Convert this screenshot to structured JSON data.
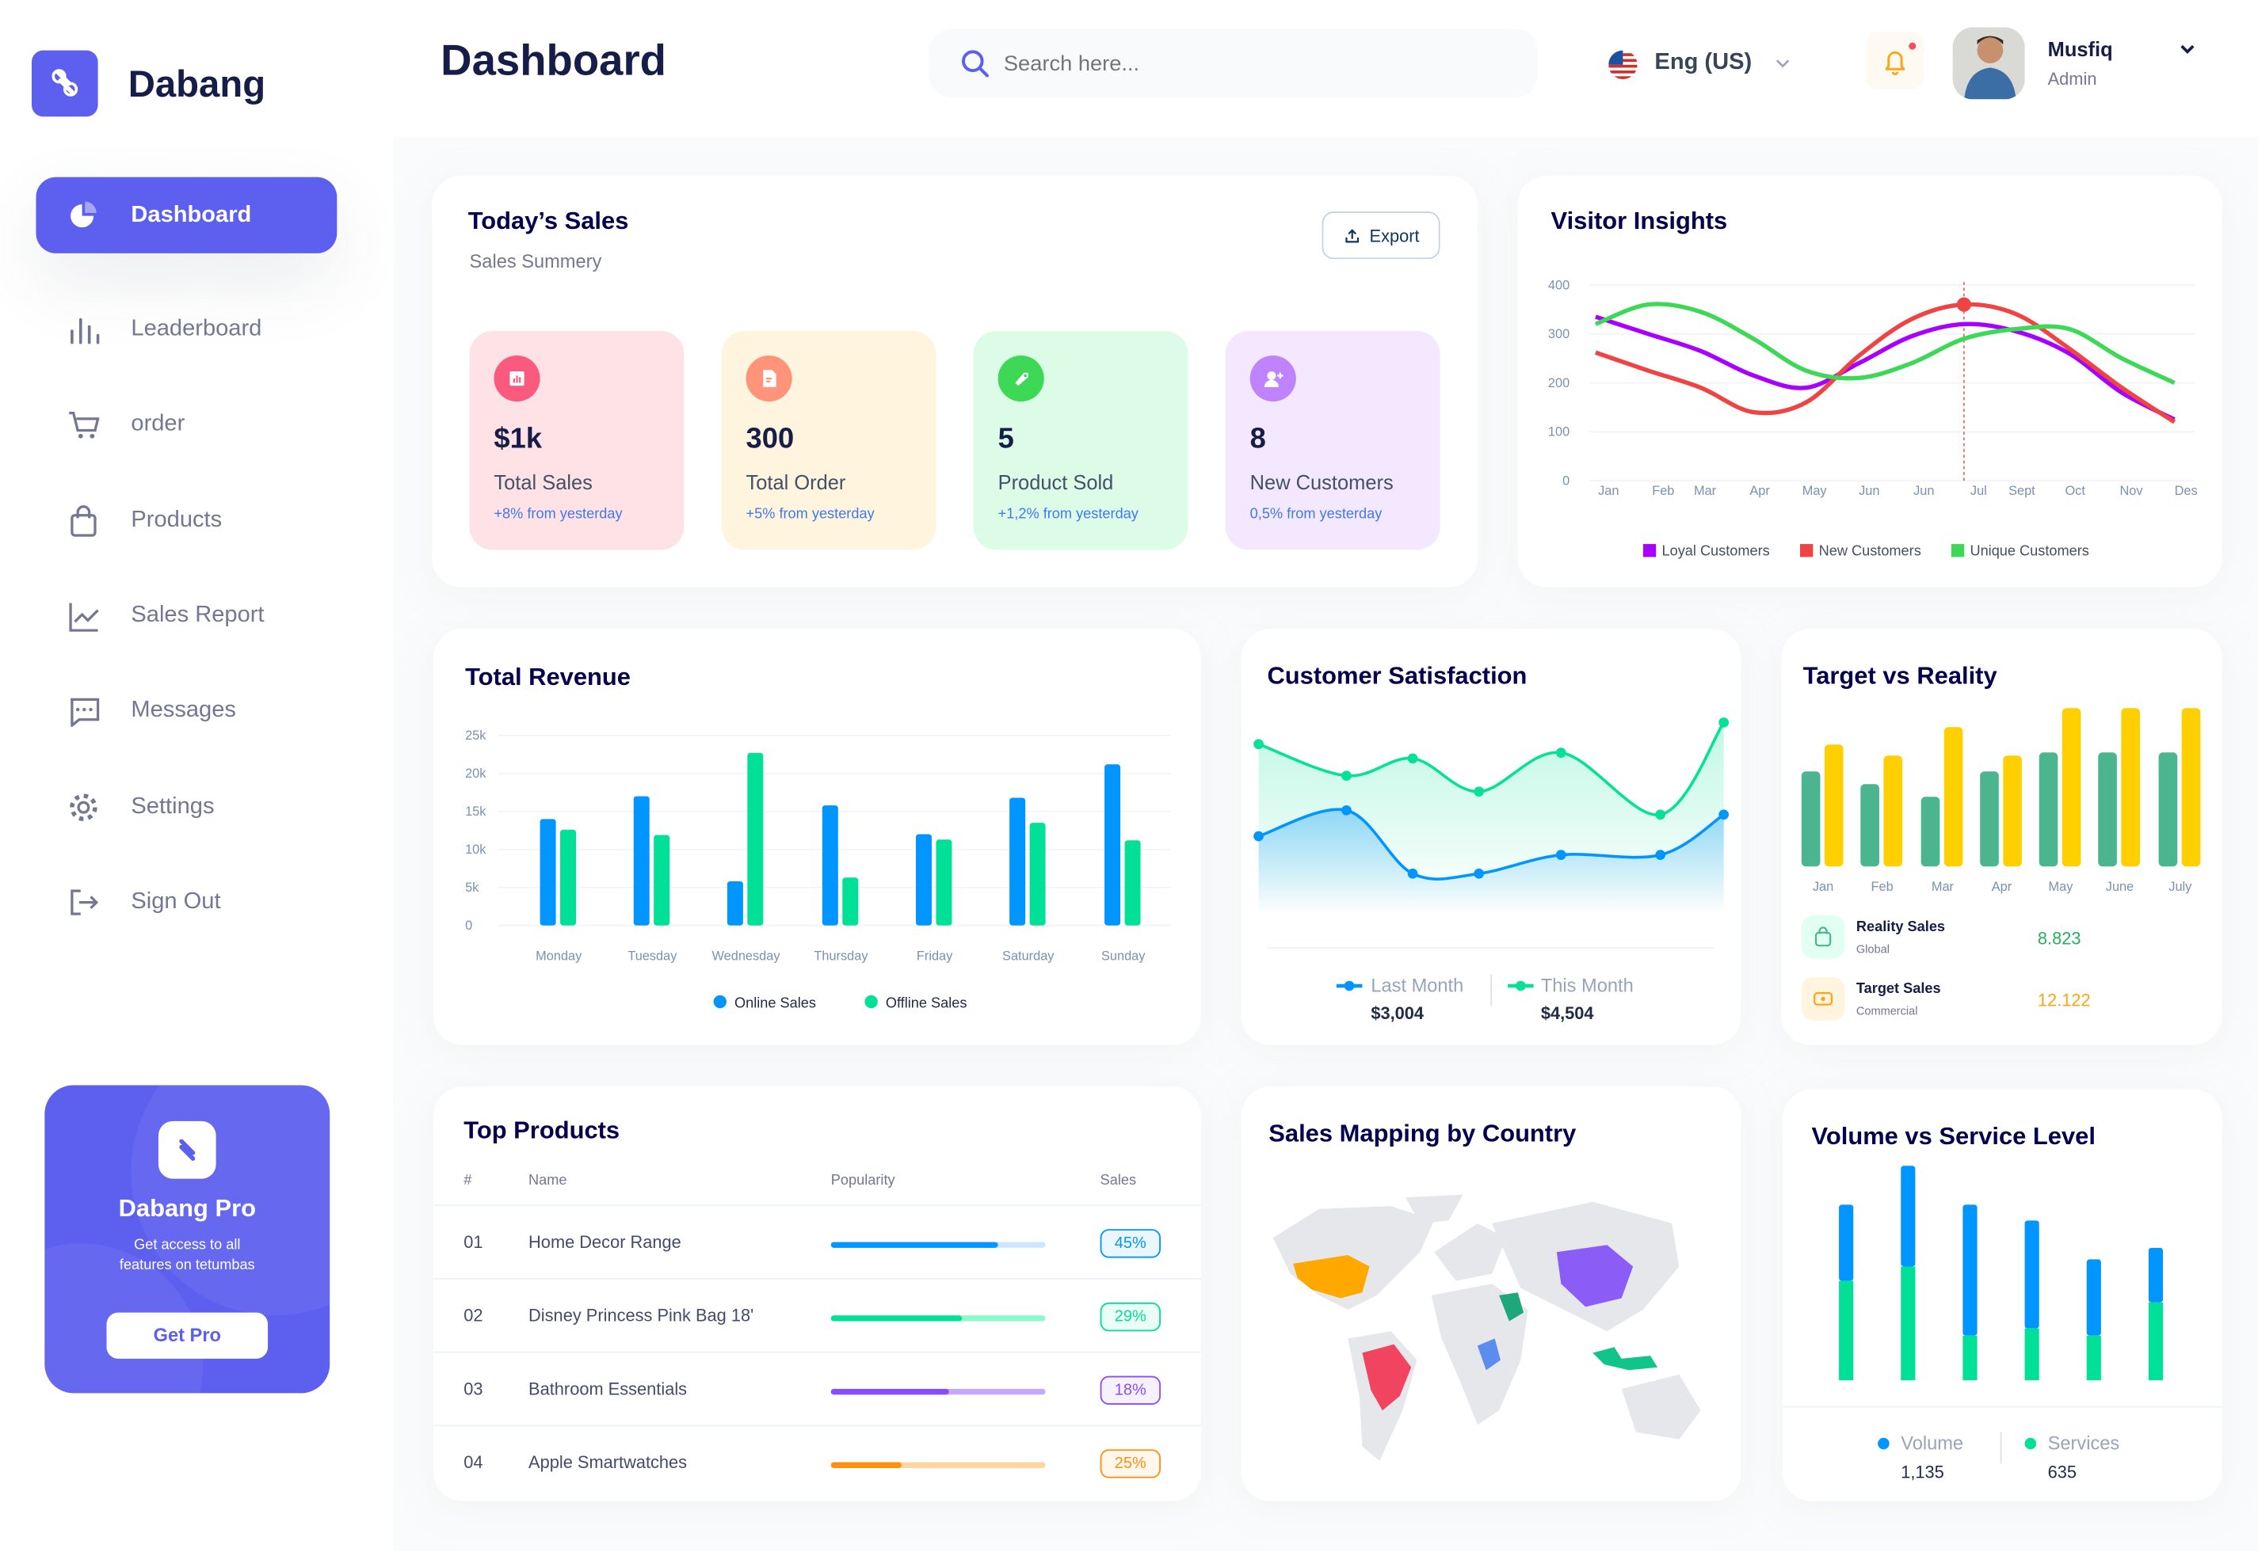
{
  "brand": {
    "name": "Dabang"
  },
  "header": {
    "title": "Dashboard",
    "search_placeholder": "Search here...",
    "language": "Eng (US)",
    "user": {
      "name": "Musfiq",
      "role": "Admin"
    },
    "has_notification": true
  },
  "sidebar": {
    "items": [
      {
        "label": "Dashboard",
        "icon": "pie-chart-icon",
        "active": true
      },
      {
        "label": "Leaderboard",
        "icon": "bar-chart-icon"
      },
      {
        "label": "order",
        "icon": "cart-icon"
      },
      {
        "label": "Products",
        "icon": "shopping-bag-icon"
      },
      {
        "label": "Sales Report",
        "icon": "line-chart-icon"
      },
      {
        "label": "Messages",
        "icon": "message-icon"
      },
      {
        "label": "Settings",
        "icon": "gear-icon"
      },
      {
        "label": "Sign Out",
        "icon": "sign-out-icon"
      }
    ],
    "promo": {
      "title": "Dabang Pro",
      "text_line1": "Get access to all",
      "text_line2": "features on tetumbas",
      "button": "Get Pro"
    }
  },
  "todays_sales": {
    "title": "Today’s Sales",
    "subtitle": "Sales Summery",
    "export_label": "Export",
    "stats": [
      {
        "value": "$1k",
        "label": "Total Sales",
        "change": "+8% from yesterday",
        "bg": "#FFE2E5",
        "icon_bg": "#FA5A7D",
        "icon": "chart-icon"
      },
      {
        "value": "300",
        "label": "Total Order",
        "change": "+5% from yesterday",
        "bg": "#FFF4DE",
        "icon_bg": "#FF947A",
        "icon": "document-icon"
      },
      {
        "value": "5",
        "label": "Product Sold",
        "change": "+1,2% from yesterday",
        "bg": "#DCFCE7",
        "icon_bg": "#3CD856",
        "icon": "tag-icon"
      },
      {
        "value": "8",
        "label": "New Customers",
        "change": "0,5% from yesterday",
        "bg": "#F3E8FF",
        "icon_bg": "#BF83FF",
        "icon": "add-user-icon"
      }
    ]
  },
  "chart_data": [
    {
      "id": "visitor_insights",
      "type": "line",
      "title": "Visitor Insights",
      "categories": [
        "Jan",
        "Feb",
        "Mar",
        "Apr",
        "May",
        "Jun",
        "Jun",
        "Jul",
        "Sept",
        "Oct",
        "Nov",
        "Des"
      ],
      "yticks": [
        "0",
        "100",
        "200",
        "300",
        "400"
      ],
      "ylim": [
        0,
        400
      ],
      "grid": true,
      "legend": "bottom",
      "highlight": {
        "series": "New Customers",
        "category_index": 7
      },
      "series": [
        {
          "name": "Loyal Customers",
          "color": "#A700FF",
          "values": [
            335,
            300,
            265,
            215,
            190,
            240,
            295,
            320,
            305,
            260,
            180,
            125
          ]
        },
        {
          "name": "New Customers",
          "color": "#EF4444",
          "values": [
            262,
            225,
            190,
            140,
            160,
            255,
            330,
            360,
            340,
            270,
            190,
            120
          ]
        },
        {
          "name": "Unique Customers",
          "color": "#3CD856",
          "values": [
            320,
            360,
            345,
            290,
            225,
            210,
            240,
            290,
            310,
            310,
            250,
            200
          ]
        }
      ]
    },
    {
      "id": "total_revenue",
      "type": "bar",
      "title": "Total Revenue",
      "categories": [
        "Monday",
        "Tuesday",
        "Wednesday",
        "Thursday",
        "Friday",
        "Saturday",
        "Sunday"
      ],
      "yticks": [
        "0",
        "5k",
        "10k",
        "15k",
        "20k",
        "25k"
      ],
      "ylim": [
        0,
        25000
      ],
      "grid": true,
      "legend": "bottom",
      "series": [
        {
          "name": "Online Sales",
          "color": "#0095FF",
          "values": [
            14000,
            17000,
            5800,
            15800,
            12000,
            16800,
            21200
          ]
        },
        {
          "name": "Offline Sales",
          "color": "#00E096",
          "values": [
            12600,
            11900,
            22700,
            6300,
            11300,
            13500,
            11200
          ]
        }
      ]
    },
    {
      "id": "customer_satisfaction",
      "type": "area",
      "title": "Customer Satisfaction",
      "series": [
        {
          "name": "Last Month",
          "color": "#0095FF",
          "total": "$3,004",
          "values": [
            69,
            87,
            43,
            43,
            56,
            56,
            84
          ]
        },
        {
          "name": "This Month",
          "color": "#07E098",
          "total": "$4,504",
          "values": [
            133,
            111,
            123,
            100,
            127,
            84,
            148
          ]
        }
      ]
    },
    {
      "id": "target_vs_reality",
      "type": "bar",
      "title": "Target vs Reality",
      "categories": [
        "Jan",
        "Feb",
        "Mar",
        "Apr",
        "May",
        "June",
        "July"
      ],
      "series": [
        {
          "name": "Reality Sales",
          "color": "#4AB58E",
          "values": [
            60,
            52,
            44,
            60,
            72,
            72,
            72
          ]
        },
        {
          "name": "Target Sales",
          "color": "#FFCF00",
          "values": [
            77,
            70,
            88,
            70,
            100,
            100,
            100
          ]
        }
      ],
      "summary": [
        {
          "label": "Reality Sales",
          "sub": "Global",
          "value": "8.823",
          "color": "#27AE60",
          "icon": "shopping-bag-icon",
          "icon_bg": "#E2FFF3"
        },
        {
          "label": "Target Sales",
          "sub": "Commercial",
          "value": "12.122",
          "color": "#FFA412",
          "icon": "ticket-icon",
          "icon_bg": "#FFF4DE"
        }
      ]
    },
    {
      "id": "volume_vs_service",
      "type": "stacked-bar",
      "title": "Volume vs Service Level",
      "legend": "bottom",
      "series": [
        {
          "name": "Volume",
          "color": "#0095FF",
          "total": "1,135",
          "values": [
            53,
            70,
            91,
            75,
            53,
            38
          ]
        },
        {
          "name": "Services",
          "color": "#00E096",
          "total": "635",
          "values": [
            69,
            79,
            31,
            36,
            31,
            54
          ]
        }
      ]
    }
  ],
  "top_products": {
    "title": "Top Products",
    "columns": [
      "#",
      "Name",
      "Popularity",
      "Sales"
    ],
    "rows": [
      {
        "rank": "01",
        "name": "Home Decor Range",
        "popularity": 0.78,
        "sales": "45%",
        "color": "#0095FF",
        "track": "#CDE7FF"
      },
      {
        "rank": "02",
        "name": "Disney Princess Pink Bag 18'",
        "popularity": 0.61,
        "sales": "29%",
        "color": "#00E096",
        "track": "#8CFAC7"
      },
      {
        "rank": "03",
        "name": "Bathroom Essentials",
        "popularity": 0.55,
        "sales": "18%",
        "color": "#884DFF",
        "track": "#C5A8FF"
      },
      {
        "rank": "04",
        "name": "Apple Smartwatches",
        "popularity": 0.33,
        "sales": "25%",
        "color": "#FF8F0D",
        "track": "#FFD5A4"
      }
    ]
  },
  "sales_map": {
    "title": "Sales Mapping by Country",
    "countries": [
      {
        "name": "United States",
        "color": "#FFA800"
      },
      {
        "name": "Brazil",
        "color": "#F04461"
      },
      {
        "name": "China",
        "color": "#8B5CF6"
      },
      {
        "name": "Saudi Arabia",
        "color": "#1FA77C"
      },
      {
        "name": "DR Congo",
        "color": "#5B8DEF"
      },
      {
        "name": "Indonesia",
        "color": "#10C48A"
      }
    ]
  },
  "colors": {
    "accent": "#5D5FEF",
    "title": "#05004E",
    "muted": "#737791"
  }
}
